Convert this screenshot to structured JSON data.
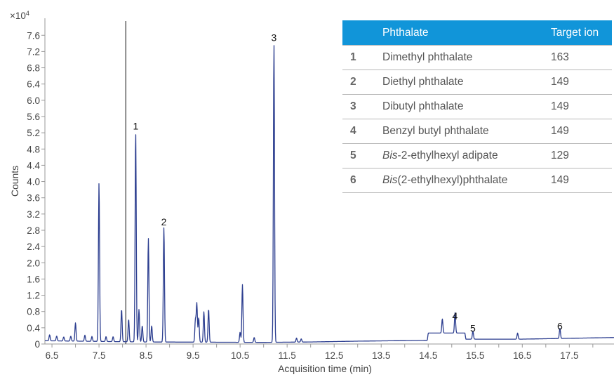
{
  "chart_data": {
    "type": "line",
    "xlabel": "Acquisition time (min)",
    "ylabel": "Counts",
    "y_multiplier_label": "×10",
    "y_multiplier_exp": "4",
    "xlim": [
      6.35,
      18.45
    ],
    "ylim": [
      0,
      7.95
    ],
    "x_ticks": [
      "6.5",
      "7",
      "7.5",
      "8",
      "8.5",
      "9",
      "9.5",
      "10",
      "10.5",
      "11",
      "11.5",
      "12",
      "12.5",
      "13",
      "13.5",
      "14",
      "14.5",
      "15",
      "15.5",
      "16",
      "16.5",
      "17",
      "17.5",
      "18"
    ],
    "x_tick_labels": [
      "6.5",
      "7.5",
      "8.5",
      "9.5",
      "10.5",
      "11.5",
      "12.5",
      "13.5",
      "14.5",
      "15.5",
      "16.5",
      "17.5"
    ],
    "y_ticks": [
      "0",
      "0.4",
      "0.8",
      "1.2",
      "1.6",
      "2.0",
      "2.4",
      "2.8",
      "3.2",
      "3.6",
      "4.0",
      "4.4",
      "4.8",
      "5.2",
      "5.6",
      "6.0",
      "6.4",
      "6.8",
      "7.2",
      "7.6"
    ],
    "series_color": "#2b3d8f",
    "marker_line": {
      "x": 8.07,
      "color": "#333333"
    },
    "baseline": [
      [
        6.35,
        0.08
      ],
      [
        8.5,
        0.05
      ],
      [
        11.0,
        0.04
      ],
      [
        12.0,
        0.05
      ],
      [
        13.0,
        0.07
      ],
      [
        14.48,
        0.09
      ],
      [
        14.5,
        0.27
      ],
      [
        15.28,
        0.27
      ],
      [
        15.3,
        0.12
      ],
      [
        16.5,
        0.12
      ],
      [
        17.5,
        0.14
      ],
      [
        18.45,
        0.16
      ]
    ],
    "peaks": [
      [
        6.45,
        0.15
      ],
      [
        6.6,
        0.12
      ],
      [
        6.75,
        0.1
      ],
      [
        6.9,
        0.12
      ],
      [
        7.0,
        0.45
      ],
      [
        7.2,
        0.15
      ],
      [
        7.35,
        0.12
      ],
      [
        7.5,
        3.9
      ],
      [
        7.65,
        0.12
      ],
      [
        7.8,
        0.12
      ],
      [
        7.98,
        0.8
      ],
      [
        8.13,
        0.55
      ],
      [
        8.28,
        5.18
      ],
      [
        8.35,
        0.8
      ],
      [
        8.42,
        0.4
      ],
      [
        8.55,
        2.55
      ],
      [
        8.62,
        0.4
      ],
      [
        8.88,
        2.82
      ],
      [
        9.55,
        0.55
      ],
      [
        9.58,
        0.95
      ],
      [
        9.62,
        0.6
      ],
      [
        9.73,
        0.75
      ],
      [
        9.83,
        0.82
      ],
      [
        10.5,
        0.25
      ],
      [
        10.55,
        1.42
      ],
      [
        10.8,
        0.12
      ],
      [
        11.22,
        7.35
      ],
      [
        11.7,
        0.1
      ],
      [
        11.8,
        0.08
      ],
      [
        14.8,
        0.35
      ],
      [
        15.07,
        0.5
      ],
      [
        15.45,
        0.2
      ],
      [
        16.4,
        0.15
      ],
      [
        17.3,
        0.25
      ]
    ],
    "peak_labels": [
      {
        "text": "1",
        "x": 8.28,
        "y": 5.18
      },
      {
        "text": "2",
        "x": 8.88,
        "y": 2.82
      },
      {
        "text": "3",
        "x": 11.22,
        "y": 7.35
      },
      {
        "text": "4",
        "x": 15.07,
        "y": 0.5
      },
      {
        "text": "5",
        "x": 15.45,
        "y": 0.2
      },
      {
        "text": "6",
        "x": 17.3,
        "y": 0.25
      }
    ]
  },
  "legend_table": {
    "headers": {
      "num": "",
      "name": "Phthalate",
      "ion": "Target ion"
    },
    "rows": [
      {
        "num": "1",
        "name_em": "",
        "name": "Dimethyl phthalate",
        "ion": "163"
      },
      {
        "num": "2",
        "name_em": "",
        "name": "Diethyl phthalate",
        "ion": "149"
      },
      {
        "num": "3",
        "name_em": "",
        "name": "Dibutyl phthalate",
        "ion": "149"
      },
      {
        "num": "4",
        "name_em": "",
        "name": "Benzyl butyl phthalate",
        "ion": "149"
      },
      {
        "num": "5",
        "name_em": "Bis",
        "name": "-2-ethylhexyl adipate",
        "ion": "129"
      },
      {
        "num": "6",
        "name_em": "Bis",
        "name": "(2-ethylhexyl)phthalate",
        "ion": "149"
      }
    ]
  }
}
